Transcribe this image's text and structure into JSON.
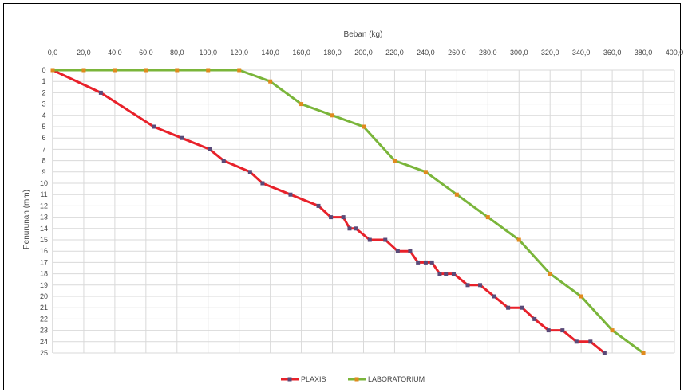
{
  "chart_data": {
    "type": "line",
    "title": "",
    "xlabel": "Beban (kg)",
    "ylabel": "Penurunan (mm)",
    "x_axis_position": "top",
    "y_inverted": true,
    "xlim": [
      0,
      400
    ],
    "ylim": [
      0,
      25
    ],
    "x_ticks": [
      "0,0",
      "20,0",
      "40,0",
      "60,0",
      "80,0",
      "100,0",
      "120,0",
      "140,0",
      "160,0",
      "180,0",
      "200,0",
      "220,0",
      "240,0",
      "260,0",
      "280,0",
      "300,0",
      "320,0",
      "340,0",
      "360,0",
      "380,0",
      "400,0"
    ],
    "y_ticks": [
      "0",
      "1",
      "2",
      "3",
      "4",
      "5",
      "6",
      "7",
      "8",
      "9",
      "10",
      "11",
      "12",
      "13",
      "14",
      "15",
      "16",
      "17",
      "18",
      "19",
      "20",
      "21",
      "22",
      "23",
      "24",
      "25"
    ],
    "grid": true,
    "legend_position": "bottom",
    "series": [
      {
        "name": "PLAXIS",
        "color": "#e8212a",
        "marker_color": "#5a4a78",
        "points": [
          [
            0,
            0
          ],
          [
            31,
            2
          ],
          [
            65,
            5
          ],
          [
            83,
            6
          ],
          [
            101,
            7
          ],
          [
            110,
            8
          ],
          [
            127,
            9
          ],
          [
            135,
            10
          ],
          [
            153,
            11
          ],
          [
            171,
            12
          ],
          [
            179,
            13
          ],
          [
            187,
            13
          ],
          [
            191,
            14
          ],
          [
            195,
            14
          ],
          [
            204,
            15
          ],
          [
            214,
            15
          ],
          [
            222,
            16
          ],
          [
            230,
            16
          ],
          [
            235,
            17
          ],
          [
            240,
            17
          ],
          [
            244,
            17
          ],
          [
            249,
            18
          ],
          [
            253,
            18
          ],
          [
            258,
            18
          ],
          [
            267,
            19
          ],
          [
            275,
            19
          ],
          [
            284,
            20
          ],
          [
            293,
            21
          ],
          [
            302,
            21
          ],
          [
            310,
            22
          ],
          [
            319,
            23
          ],
          [
            328,
            23
          ],
          [
            337,
            24
          ],
          [
            346,
            24
          ],
          [
            355,
            25
          ]
        ]
      },
      {
        "name": "LABORATORIUM",
        "color": "#7ab53a",
        "marker_color": "#e08a1e",
        "points": [
          [
            0,
            0
          ],
          [
            20,
            0
          ],
          [
            40,
            0
          ],
          [
            60,
            0
          ],
          [
            80,
            0
          ],
          [
            100,
            0
          ],
          [
            120,
            0
          ],
          [
            140,
            1
          ],
          [
            160,
            3
          ],
          [
            180,
            4
          ],
          [
            200,
            5
          ],
          [
            220,
            8
          ],
          [
            240,
            9
          ],
          [
            260,
            11
          ],
          [
            280,
            13
          ],
          [
            300,
            15
          ],
          [
            320,
            18
          ],
          [
            340,
            20
          ],
          [
            360,
            23
          ],
          [
            380,
            25
          ]
        ]
      }
    ]
  }
}
